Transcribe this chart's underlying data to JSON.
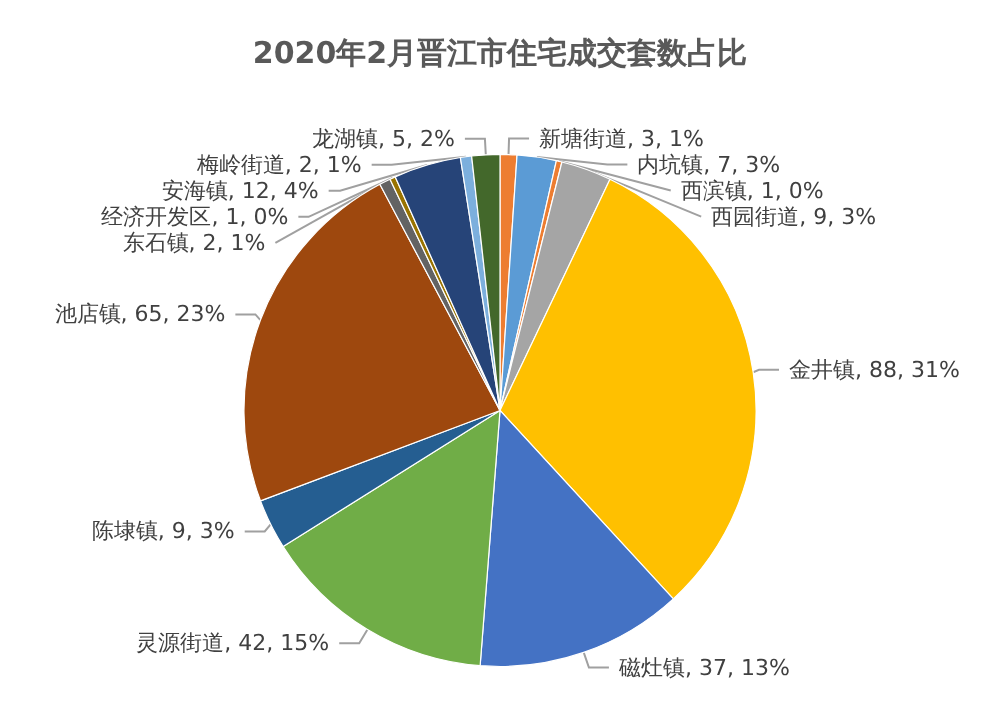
{
  "chart_data": {
    "type": "pie",
    "title": "2020年2月晋江市住宅成交套数占比",
    "legend": false,
    "categories": [
      "新塘街道",
      "内坑镇",
      "西滨镇",
      "西园街道",
      "金井镇",
      "磁灶镇",
      "灵源街道",
      "陈埭镇",
      "池店镇",
      "东石镇",
      "经济开发区",
      "安海镇",
      "梅岭街道",
      "龙湖镇"
    ],
    "values": [
      3,
      7,
      1,
      9,
      88,
      37,
      42,
      9,
      65,
      2,
      1,
      12,
      2,
      5
    ],
    "value_labels": [
      "3, 1%",
      "7, 3%",
      "1, 0%",
      "9, 3%",
      "88, 31%",
      "37, 13%",
      "42, 15%",
      "9, 3%",
      "65, 23%",
      "2, 1%",
      "1, 0%",
      "12, 4%",
      "2, 1%",
      "5, 2%"
    ],
    "colors": [
      "#ed7d31",
      "#5b9bd5",
      "#ed7d31",
      "#a5a5a5",
      "#ffc000",
      "#4472c4",
      "#70ad47",
      "#255e91",
      "#9e480e",
      "#636363",
      "#997300",
      "#264478",
      "#7cafdd",
      "#43682b"
    ]
  }
}
